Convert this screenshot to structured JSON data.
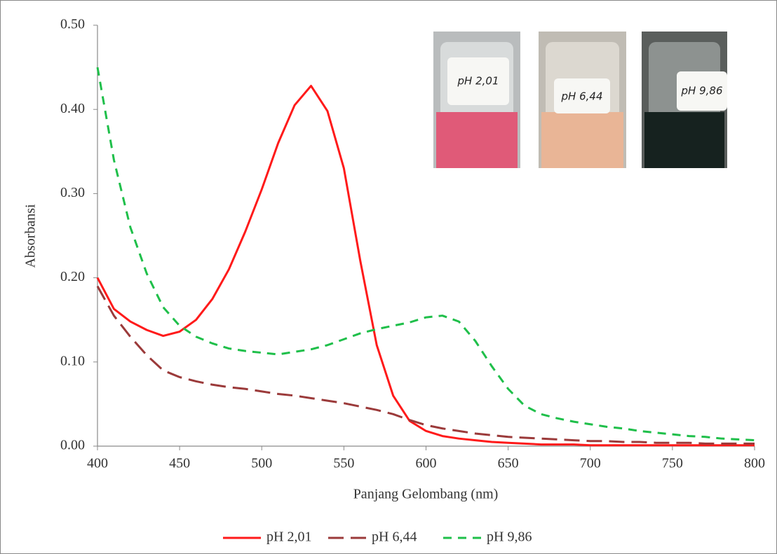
{
  "chart_data": {
    "type": "line",
    "x_label": "Panjang Gelombang (nm)",
    "y_label": "Absorbansi",
    "x": [
      400,
      410,
      420,
      430,
      440,
      450,
      460,
      470,
      480,
      490,
      500,
      510,
      520,
      530,
      540,
      550,
      560,
      570,
      580,
      590,
      600,
      610,
      620,
      630,
      640,
      650,
      660,
      670,
      680,
      690,
      700,
      710,
      720,
      730,
      740,
      750,
      760,
      770,
      780,
      790,
      800
    ],
    "series": [
      {
        "name": "pH 2,01",
        "color": "#ff1a1a",
        "line_style": "solid",
        "values": [
          0.2,
          0.163,
          0.148,
          0.138,
          0.131,
          0.136,
          0.15,
          0.175,
          0.21,
          0.255,
          0.305,
          0.36,
          0.405,
          0.428,
          0.398,
          0.33,
          0.22,
          0.12,
          0.06,
          0.03,
          0.018,
          0.012,
          0.009,
          0.007,
          0.005,
          0.004,
          0.003,
          0.002,
          0.002,
          0.002,
          0.001,
          0.001,
          0.001,
          0.001,
          0.001,
          0.001,
          0.001,
          0.001,
          0.001,
          0.001,
          0.001
        ]
      },
      {
        "name": "pH 6,44",
        "color": "#9b3a3a",
        "line_style": "long-dash",
        "values": [
          0.19,
          0.155,
          0.13,
          0.108,
          0.09,
          0.082,
          0.077,
          0.073,
          0.07,
          0.068,
          0.065,
          0.062,
          0.06,
          0.057,
          0.054,
          0.051,
          0.047,
          0.043,
          0.038,
          0.031,
          0.025,
          0.021,
          0.018,
          0.015,
          0.013,
          0.011,
          0.01,
          0.009,
          0.008,
          0.007,
          0.006,
          0.006,
          0.005,
          0.005,
          0.004,
          0.004,
          0.004,
          0.003,
          0.003,
          0.003,
          0.003
        ]
      },
      {
        "name": "pH 9,86",
        "color": "#1fbf4a",
        "line_style": "dash",
        "values": [
          0.45,
          0.34,
          0.26,
          0.205,
          0.165,
          0.143,
          0.13,
          0.122,
          0.116,
          0.113,
          0.111,
          0.109,
          0.112,
          0.115,
          0.12,
          0.127,
          0.134,
          0.139,
          0.143,
          0.147,
          0.153,
          0.155,
          0.148,
          0.125,
          0.095,
          0.068,
          0.048,
          0.038,
          0.033,
          0.029,
          0.026,
          0.023,
          0.021,
          0.018,
          0.016,
          0.014,
          0.012,
          0.011,
          0.009,
          0.008,
          0.007
        ]
      }
    ],
    "xlim": [
      400,
      800
    ],
    "xticks": [
      400,
      450,
      500,
      550,
      600,
      650,
      700,
      750,
      800
    ],
    "ylim": [
      0,
      0.5
    ],
    "yticks": [
      {
        "value": 0,
        "label": "0.00"
      },
      {
        "value": 0.1,
        "label": "0.10"
      },
      {
        "value": 0.2,
        "label": "0.20"
      },
      {
        "value": 0.3,
        "label": "0.30"
      },
      {
        "value": 0.4,
        "label": "0.40"
      },
      {
        "value": 0.5,
        "label": "0.50"
      }
    ],
    "grid": false,
    "legend": "bottom"
  }
}
